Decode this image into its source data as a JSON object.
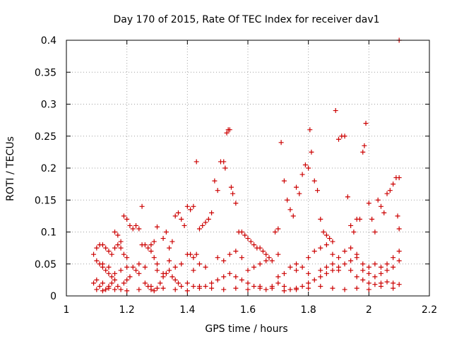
{
  "chart_data": {
    "type": "scatter",
    "title": "Day 170 of 2015, Rate Of TEC Index for receiver dav1",
    "xlabel": "GPS time / hours",
    "ylabel": "ROTI / TECUs",
    "xlim": [
      1,
      2.2
    ],
    "ylim": [
      0,
      0.4
    ],
    "xticks": [
      "1",
      "1.2",
      "1.4",
      "1.6",
      "1.8",
      "2",
      "2.2"
    ],
    "xtick_values": [
      1,
      1.2,
      1.4,
      1.6,
      1.8,
      2,
      2.2
    ],
    "yticks": [
      "0",
      "0.05",
      "0.1",
      "0.15",
      "0.2",
      "0.25",
      "0.3",
      "0.35",
      "0.4"
    ],
    "ytick_values": [
      0,
      0.05,
      0.1,
      0.15,
      0.2,
      0.25,
      0.3,
      0.35,
      0.4
    ],
    "grid": true,
    "marker": "+",
    "color": "#cc0000",
    "series": [
      {
        "points": [
          [
            1.09,
            0.065
          ],
          [
            1.1,
            0.075
          ],
          [
            1.11,
            0.08
          ],
          [
            1.12,
            0.08
          ],
          [
            1.13,
            0.075
          ],
          [
            1.14,
            0.07
          ],
          [
            1.15,
            0.065
          ],
          [
            1.1,
            0.055
          ],
          [
            1.11,
            0.05
          ],
          [
            1.12,
            0.045
          ],
          [
            1.13,
            0.04
          ],
          [
            1.14,
            0.035
          ],
          [
            1.15,
            0.03
          ],
          [
            1.16,
            0.025
          ],
          [
            1.16,
            0.075
          ],
          [
            1.17,
            0.08
          ],
          [
            1.18,
            0.075
          ],
          [
            1.19,
            0.065
          ],
          [
            1.2,
            0.06
          ],
          [
            1.16,
            0.1
          ],
          [
            1.17,
            0.095
          ],
          [
            1.18,
            0.085
          ],
          [
            1.19,
            0.125
          ],
          [
            1.2,
            0.12
          ],
          [
            1.21,
            0.11
          ],
          [
            1.22,
            0.105
          ],
          [
            1.23,
            0.11
          ],
          [
            1.24,
            0.105
          ],
          [
            1.25,
            0.14
          ],
          [
            1.25,
            0.08
          ],
          [
            1.26,
            0.08
          ],
          [
            1.27,
            0.075
          ],
          [
            1.28,
            0.07
          ],
          [
            1.29,
            0.06
          ],
          [
            1.3,
            0.05
          ],
          [
            1.28,
            0.08
          ],
          [
            1.29,
            0.085
          ],
          [
            1.3,
            0.108
          ],
          [
            1.32,
            0.09
          ],
          [
            1.33,
            0.1
          ],
          [
            1.34,
            0.075
          ],
          [
            1.35,
            0.085
          ],
          [
            1.36,
            0.125
          ],
          [
            1.37,
            0.13
          ],
          [
            1.38,
            0.12
          ],
          [
            1.39,
            0.11
          ],
          [
            1.4,
            0.14
          ],
          [
            1.41,
            0.135
          ],
          [
            1.42,
            0.14
          ],
          [
            1.43,
            0.21
          ],
          [
            1.4,
            0.065
          ],
          [
            1.41,
            0.065
          ],
          [
            1.42,
            0.06
          ],
          [
            1.43,
            0.065
          ],
          [
            1.44,
            0.105
          ],
          [
            1.45,
            0.11
          ],
          [
            1.46,
            0.115
          ],
          [
            1.47,
            0.12
          ],
          [
            1.48,
            0.13
          ],
          [
            1.49,
            0.18
          ],
          [
            1.5,
            0.165
          ],
          [
            1.51,
            0.21
          ],
          [
            1.52,
            0.21
          ],
          [
            1.525,
            0.2
          ],
          [
            1.53,
            0.255
          ],
          [
            1.535,
            0.26
          ],
          [
            1.54,
            0.26
          ],
          [
            1.545,
            0.17
          ],
          [
            1.55,
            0.16
          ],
          [
            1.56,
            0.145
          ],
          [
            1.57,
            0.1
          ],
          [
            1.58,
            0.1
          ],
          [
            1.59,
            0.095
          ],
          [
            1.6,
            0.09
          ],
          [
            1.61,
            0.085
          ],
          [
            1.62,
            0.08
          ],
          [
            1.63,
            0.075
          ],
          [
            1.64,
            0.075
          ],
          [
            1.65,
            0.07
          ],
          [
            1.66,
            0.065
          ],
          [
            1.67,
            0.06
          ],
          [
            1.68,
            0.055
          ],
          [
            1.69,
            0.1
          ],
          [
            1.7,
            0.105
          ],
          [
            1.71,
            0.24
          ],
          [
            1.72,
            0.18
          ],
          [
            1.73,
            0.15
          ],
          [
            1.74,
            0.135
          ],
          [
            1.75,
            0.125
          ],
          [
            1.76,
            0.17
          ],
          [
            1.77,
            0.16
          ],
          [
            1.78,
            0.19
          ],
          [
            1.79,
            0.205
          ],
          [
            1.8,
            0.2
          ],
          [
            1.805,
            0.26
          ],
          [
            1.81,
            0.225
          ],
          [
            1.82,
            0.18
          ],
          [
            1.83,
            0.165
          ],
          [
            1.84,
            0.12
          ],
          [
            1.85,
            0.1
          ],
          [
            1.86,
            0.095
          ],
          [
            1.87,
            0.09
          ],
          [
            1.88,
            0.085
          ],
          [
            1.89,
            0.29
          ],
          [
            1.9,
            0.245
          ],
          [
            1.91,
            0.25
          ],
          [
            1.92,
            0.25
          ],
          [
            1.93,
            0.155
          ],
          [
            1.94,
            0.11
          ],
          [
            1.95,
            0.1
          ],
          [
            1.96,
            0.12
          ],
          [
            1.97,
            0.12
          ],
          [
            1.98,
            0.225
          ],
          [
            1.985,
            0.235
          ],
          [
            1.99,
            0.27
          ],
          [
            2.0,
            0.145
          ],
          [
            2.01,
            0.12
          ],
          [
            2.02,
            0.1
          ],
          [
            2.03,
            0.15
          ],
          [
            2.04,
            0.14
          ],
          [
            2.05,
            0.13
          ],
          [
            2.06,
            0.16
          ],
          [
            2.07,
            0.165
          ],
          [
            2.08,
            0.175
          ],
          [
            2.09,
            0.185
          ],
          [
            2.1,
            0.185
          ],
          [
            2.095,
            0.125
          ],
          [
            2.1,
            0.105
          ],
          [
            2.1,
            0.4
          ],
          [
            1.09,
            0.02
          ],
          [
            1.1,
            0.025
          ],
          [
            1.11,
            0.015
          ],
          [
            1.12,
            0.02
          ],
          [
            1.13,
            0.01
          ],
          [
            1.14,
            0.015
          ],
          [
            1.15,
            0.02
          ],
          [
            1.17,
            0.015
          ],
          [
            1.18,
            0.01
          ],
          [
            1.19,
            0.02
          ],
          [
            1.2,
            0.025
          ],
          [
            1.21,
            0.03
          ],
          [
            1.22,
            0.045
          ],
          [
            1.23,
            0.04
          ],
          [
            1.24,
            0.035
          ],
          [
            1.26,
            0.02
          ],
          [
            1.27,
            0.015
          ],
          [
            1.28,
            0.01
          ],
          [
            1.29,
            0.008
          ],
          [
            1.3,
            0.012
          ],
          [
            1.31,
            0.02
          ],
          [
            1.32,
            0.03
          ],
          [
            1.33,
            0.035
          ],
          [
            1.34,
            0.04
          ],
          [
            1.35,
            0.03
          ],
          [
            1.36,
            0.025
          ],
          [
            1.37,
            0.02
          ],
          [
            1.38,
            0.015
          ],
          [
            1.4,
            0.02
          ],
          [
            1.42,
            0.015
          ],
          [
            1.44,
            0.012
          ],
          [
            1.46,
            0.015
          ],
          [
            1.48,
            0.02
          ],
          [
            1.5,
            0.025
          ],
          [
            1.52,
            0.03
          ],
          [
            1.54,
            0.035
          ],
          [
            1.56,
            0.03
          ],
          [
            1.58,
            0.025
          ],
          [
            1.6,
            0.02
          ],
          [
            1.62,
            0.015
          ],
          [
            1.64,
            0.012
          ],
          [
            1.66,
            0.01
          ],
          [
            1.68,
            0.015
          ],
          [
            1.7,
            0.02
          ],
          [
            1.72,
            0.015
          ],
          [
            1.74,
            0.01
          ],
          [
            1.76,
            0.012
          ],
          [
            1.78,
            0.015
          ],
          [
            1.8,
            0.02
          ],
          [
            1.82,
            0.025
          ],
          [
            1.84,
            0.03
          ],
          [
            1.86,
            0.035
          ],
          [
            1.88,
            0.04
          ],
          [
            1.9,
            0.045
          ],
          [
            1.92,
            0.05
          ],
          [
            1.94,
            0.04
          ],
          [
            1.96,
            0.03
          ],
          [
            1.98,
            0.025
          ],
          [
            2.0,
            0.02
          ],
          [
            2.02,
            0.018
          ],
          [
            2.04,
            0.02
          ],
          [
            2.06,
            0.022
          ],
          [
            2.08,
            0.02
          ],
          [
            2.1,
            0.018
          ],
          [
            1.6,
            0.04
          ],
          [
            1.62,
            0.045
          ],
          [
            1.64,
            0.05
          ],
          [
            1.66,
            0.055
          ],
          [
            1.7,
            0.03
          ],
          [
            1.72,
            0.035
          ],
          [
            1.76,
            0.05
          ],
          [
            1.78,
            0.045
          ],
          [
            1.8,
            0.06
          ],
          [
            1.82,
            0.07
          ],
          [
            1.84,
            0.075
          ],
          [
            1.86,
            0.08
          ],
          [
            1.88,
            0.065
          ],
          [
            1.9,
            0.06
          ],
          [
            1.92,
            0.07
          ],
          [
            1.94,
            0.075
          ],
          [
            1.96,
            0.065
          ],
          [
            1.98,
            0.05
          ],
          [
            2.0,
            0.045
          ],
          [
            2.02,
            0.05
          ],
          [
            2.04,
            0.045
          ],
          [
            2.06,
            0.05
          ],
          [
            2.08,
            0.045
          ],
          [
            2.1,
            0.055
          ],
          [
            2.1,
            0.07
          ],
          [
            1.94,
            0.055
          ],
          [
            1.96,
            0.06
          ],
          [
            1.98,
            0.04
          ],
          [
            2.0,
            0.035
          ],
          [
            2.02,
            0.03
          ],
          [
            2.04,
            0.035
          ],
          [
            2.06,
            0.04
          ],
          [
            2.08,
            0.06
          ],
          [
            1.5,
            0.06
          ],
          [
            1.52,
            0.055
          ],
          [
            1.54,
            0.065
          ],
          [
            1.56,
            0.07
          ],
          [
            1.58,
            0.06
          ],
          [
            1.46,
            0.045
          ],
          [
            1.44,
            0.05
          ],
          [
            1.42,
            0.04
          ],
          [
            1.38,
            0.05
          ],
          [
            1.36,
            0.045
          ],
          [
            1.34,
            0.055
          ],
          [
            1.2,
            0.045
          ],
          [
            1.18,
            0.04
          ],
          [
            1.16,
            0.035
          ],
          [
            1.24,
            0.05
          ],
          [
            1.26,
            0.045
          ],
          [
            1.3,
            0.04
          ],
          [
            1.32,
            0.035
          ],
          [
            1.14,
            0.045
          ],
          [
            1.12,
            0.05
          ],
          [
            1.7,
            0.065
          ],
          [
            1.74,
            0.045
          ],
          [
            1.76,
            0.04
          ],
          [
            1.8,
            0.035
          ],
          [
            1.84,
            0.04
          ],
          [
            1.86,
            0.045
          ],
          [
            1.88,
            0.05
          ],
          [
            1.9,
            0.04
          ],
          [
            1.1,
            0.01
          ],
          [
            1.12,
            0.008
          ],
          [
            1.14,
            0.012
          ],
          [
            1.16,
            0.01
          ],
          [
            1.2,
            0.008
          ],
          [
            1.24,
            0.01
          ],
          [
            1.28,
            0.015
          ],
          [
            1.32,
            0.012
          ],
          [
            1.36,
            0.01
          ],
          [
            1.4,
            0.008
          ],
          [
            1.44,
            0.015
          ],
          [
            1.48,
            0.012
          ],
          [
            1.52,
            0.01
          ],
          [
            1.56,
            0.012
          ],
          [
            1.6,
            0.01
          ],
          [
            1.64,
            0.015
          ],
          [
            1.68,
            0.012
          ],
          [
            1.72,
            0.008
          ],
          [
            1.76,
            0.01
          ],
          [
            1.8,
            0.012
          ],
          [
            1.84,
            0.015
          ],
          [
            1.88,
            0.012
          ],
          [
            1.92,
            0.01
          ],
          [
            1.96,
            0.012
          ],
          [
            2.0,
            0.01
          ],
          [
            2.04,
            0.015
          ],
          [
            2.08,
            0.012
          ]
        ]
      }
    ]
  }
}
